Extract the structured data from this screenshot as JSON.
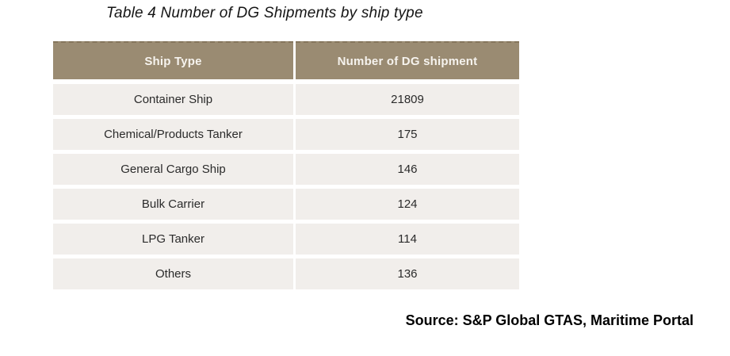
{
  "title": "Table 4 Number of DG Shipments by ship type",
  "table": {
    "columns": [
      "Ship Type",
      "Number of DG shipment"
    ],
    "rows": [
      {
        "ship_type": "Container Ship",
        "count": "21809"
      },
      {
        "ship_type": "Chemical/Products Tanker",
        "count": "175"
      },
      {
        "ship_type": "General Cargo Ship",
        "count": "146"
      },
      {
        "ship_type": "Bulk Carrier",
        "count": "124"
      },
      {
        "ship_type": "LPG Tanker",
        "count": "114"
      },
      {
        "ship_type": "Others",
        "count": "136"
      }
    ]
  },
  "source": "Source: S&P Global GTAS, Maritime Portal",
  "colors": {
    "header_background": "#9a8b72",
    "header_top_border": "#85755c",
    "header_text": "#f6f3ee",
    "row_background": "#f1eeeb",
    "body_text": "#2b2b2b",
    "page_background": "#ffffff"
  }
}
